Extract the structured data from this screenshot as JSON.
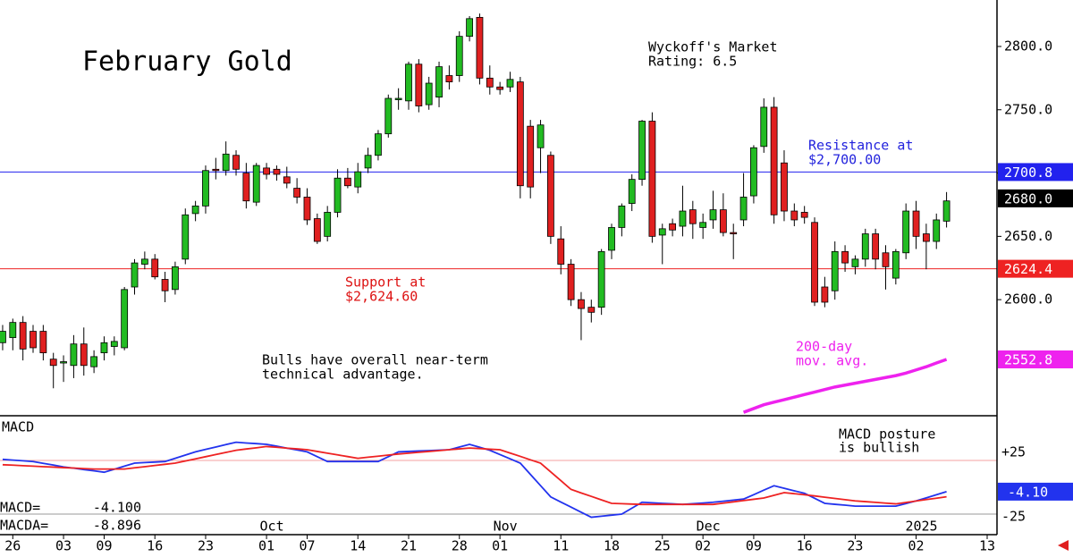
{
  "chart_data": [
    {
      "type": "candlestick",
      "title": "February Gold",
      "annotations": [
        {
          "lines": [
            "Wyckoff's Market",
            "Rating: 6.5"
          ],
          "color": "#000000"
        },
        {
          "lines": [
            "Resistance at",
            "$2,700.00"
          ],
          "color": "#2222dd"
        },
        {
          "lines": [
            "Support at",
            "$2,624.60"
          ],
          "color": "#dd1111"
        },
        {
          "lines": [
            "Bulls have overall near-term",
            "technical advantage."
          ],
          "color": "#000000"
        },
        {
          "lines": [
            "200-day",
            "mov. avg."
          ],
          "color": "#ee22ee"
        }
      ],
      "open": [
        2566,
        2570,
        2582,
        2575,
        2575,
        2553,
        2550,
        2548,
        2565,
        2547,
        2558,
        2563,
        2562,
        2610,
        2628,
        2632,
        2616,
        2608,
        2632,
        2668,
        2674,
        2703,
        2702,
        2714,
        2700,
        2677,
        2704,
        2703,
        2697,
        2688,
        2681,
        2664,
        2650,
        2669,
        2696,
        2689,
        2704,
        2714,
        2731,
        2758,
        2757,
        2786,
        2754,
        2760,
        2777,
        2777,
        2808,
        2823,
        2775,
        2768,
        2768,
        2772,
        2737,
        2720,
        2714,
        2648,
        2628,
        2600,
        2594,
        2594,
        2639,
        2657,
        2676,
        2695,
        2741,
        2651,
        2660,
        2658,
        2671,
        2657,
        2663,
        2671,
        2653,
        2663,
        2682,
        2721,
        2752,
        2708,
        2670,
        2669,
        2661,
        2610,
        2607,
        2638,
        2626,
        2632,
        2652,
        2637,
        2617,
        2637,
        2670,
        2652,
        2646,
        2662
      ],
      "high": [
        2580,
        2585,
        2587,
        2580,
        2580,
        2558,
        2556,
        2572,
        2578,
        2560,
        2571,
        2571,
        2610,
        2632,
        2638,
        2636,
        2622,
        2630,
        2672,
        2678,
        2706,
        2712,
        2725,
        2718,
        2708,
        2708,
        2708,
        2706,
        2705,
        2696,
        2688,
        2668,
        2674,
        2703,
        2704,
        2708,
        2720,
        2734,
        2762,
        2767,
        2788,
        2790,
        2776,
        2788,
        2785,
        2812,
        2824,
        2826,
        2785,
        2772,
        2780,
        2776,
        2742,
        2742,
        2717,
        2658,
        2632,
        2606,
        2600,
        2640,
        2660,
        2676,
        2699,
        2742,
        2748,
        2660,
        2664,
        2690,
        2678,
        2668,
        2686,
        2684,
        2660,
        2700,
        2722,
        2759,
        2760,
        2718,
        2676,
        2674,
        2665,
        2618,
        2646,
        2643,
        2635,
        2656,
        2656,
        2643,
        2640,
        2676,
        2678,
        2660,
        2668,
        2685
      ],
      "low": [
        2560,
        2560,
        2552,
        2558,
        2552,
        2530,
        2535,
        2538,
        2540,
        2542,
        2552,
        2556,
        2560,
        2604,
        2624,
        2616,
        2598,
        2604,
        2628,
        2662,
        2668,
        2695,
        2698,
        2698,
        2672,
        2674,
        2695,
        2694,
        2688,
        2676,
        2659,
        2644,
        2646,
        2665,
        2688,
        2684,
        2700,
        2710,
        2728,
        2750,
        2750,
        2748,
        2750,
        2752,
        2766,
        2772,
        2804,
        2770,
        2762,
        2762,
        2764,
        2680,
        2680,
        2700,
        2644,
        2620,
        2595,
        2568,
        2582,
        2588,
        2632,
        2650,
        2670,
        2690,
        2645,
        2628,
        2650,
        2650,
        2648,
        2648,
        2656,
        2650,
        2632,
        2658,
        2676,
        2716,
        2660,
        2662,
        2658,
        2660,
        2595,
        2594,
        2600,
        2622,
        2620,
        2626,
        2624,
        2608,
        2612,
        2632,
        2640,
        2624,
        2640,
        2657
      ],
      "close": [
        2575,
        2582,
        2561,
        2562,
        2558,
        2548,
        2551,
        2565,
        2548,
        2555,
        2566,
        2567,
        2608,
        2629,
        2632,
        2618,
        2607,
        2626,
        2667,
        2674,
        2702,
        2702,
        2715,
        2703,
        2678,
        2706,
        2699,
        2699,
        2692,
        2681,
        2663,
        2646,
        2669,
        2696,
        2690,
        2701,
        2714,
        2731,
        2759,
        2759,
        2786,
        2753,
        2771,
        2784,
        2772,
        2808,
        2822,
        2775,
        2768,
        2766,
        2774,
        2690,
        2689,
        2738,
        2650,
        2628,
        2600,
        2593,
        2590,
        2638,
        2657,
        2674,
        2695,
        2741,
        2650,
        2656,
        2655,
        2670,
        2660,
        2661,
        2671,
        2653,
        2652,
        2681,
        2720,
        2752,
        2667,
        2670,
        2663,
        2665,
        2598,
        2598,
        2638,
        2629,
        2632,
        2652,
        2632,
        2626,
        2638,
        2670,
        2650,
        2646,
        2663,
        2678
      ],
      "up_color": "#22bb22",
      "down_color": "#e02020",
      "ylim": [
        2508.3,
        2836.7
      ],
      "yticks": [
        {
          "value": 2800,
          "label": "2800.0"
        },
        {
          "value": 2750,
          "label": "2750.0"
        },
        {
          "value": 2700,
          "label": "2700.0"
        },
        {
          "value": 2650,
          "label": "2650.0"
        },
        {
          "value": 2600,
          "label": "2600.0"
        }
      ],
      "xlim": [
        -0.26,
        97.97
      ],
      "xticks": [
        {
          "value": 1,
          "label": "26"
        },
        {
          "value": 6,
          "label": "03"
        },
        {
          "value": 10,
          "label": "09"
        },
        {
          "value": 15,
          "label": "16"
        },
        {
          "value": 20,
          "label": "23"
        },
        {
          "value": 26,
          "label": "01"
        },
        {
          "value": 30,
          "label": "07"
        },
        {
          "value": 35,
          "label": "14"
        },
        {
          "value": 40,
          "label": "21"
        },
        {
          "value": 45,
          "label": "28"
        },
        {
          "value": 49,
          "label": "01"
        },
        {
          "value": 55,
          "label": "11"
        },
        {
          "value": 60,
          "label": "18"
        },
        {
          "value": 65,
          "label": "25"
        },
        {
          "value": 69,
          "label": "02"
        },
        {
          "value": 74,
          "label": "09"
        },
        {
          "value": 79,
          "label": "16"
        },
        {
          "value": 84,
          "label": "23"
        },
        {
          "value": 90,
          "label": "02"
        },
        {
          "value": 97,
          "label": "13"
        }
      ],
      "levels": [
        {
          "value": 2700.8,
          "label": "2700.8",
          "color": "#2222ee",
          "line": true
        },
        {
          "value": 2680,
          "label": "2680.0",
          "color": "#000000",
          "line": false
        },
        {
          "value": 2624.4,
          "label": "2624.4",
          "color": "#ee2222",
          "line": true
        },
        {
          "value": 2552.8,
          "label": "2552.8",
          "color": "#ee22ee",
          "line": false
        }
      ],
      "ma200": {
        "color": "#ee22ee",
        "values": [
          null,
          null,
          null,
          null,
          null,
          null,
          null,
          null,
          null,
          null,
          null,
          null,
          null,
          null,
          null,
          null,
          null,
          null,
          null,
          null,
          null,
          null,
          null,
          null,
          null,
          null,
          null,
          null,
          null,
          null,
          null,
          null,
          null,
          null,
          null,
          null,
          null,
          null,
          null,
          null,
          null,
          null,
          null,
          null,
          null,
          null,
          null,
          null,
          null,
          null,
          null,
          null,
          null,
          null,
          null,
          null,
          null,
          null,
          null,
          null,
          null,
          null,
          null,
          null,
          null,
          null,
          null,
          null,
          null,
          null,
          null,
          null,
          null,
          2511,
          2514,
          2517,
          2519,
          2521,
          2523,
          2525,
          2527,
          2529,
          2531,
          2532.5,
          2534,
          2535.5,
          2537,
          2538.5,
          2540,
          2542,
          2544.5,
          2547,
          2550,
          2552.8
        ]
      }
    },
    {
      "type": "line",
      "title": "MACD",
      "annotations": [
        {
          "lines": [
            "MACD posture",
            "is bullish"
          ],
          "color": "#000000"
        }
      ],
      "xlim": [
        -0.26,
        97.97
      ],
      "ylim": [
        -44.2,
        66.7
      ],
      "yticks": [
        {
          "value": 25,
          "label": "+25"
        },
        -25
      ],
      "month_labels": [
        {
          "value": 26,
          "label": "Oct"
        },
        {
          "value": 49,
          "label": "Nov"
        },
        {
          "value": 69,
          "label": "Dec"
        },
        {
          "value": 90,
          "label": "2025"
        }
      ],
      "series": [
        {
          "name": "MACD=",
          "readout": "-4.100",
          "last_label": "-4.10",
          "color": "#2233ee",
          "values": [
            26,
            25.3,
            24.7,
            24,
            22.3,
            20.7,
            19,
            17.8,
            16.5,
            15.3,
            14,
            16.8,
            19.7,
            22.5,
            23,
            23.5,
            24,
            27,
            30,
            33,
            35.3,
            37.5,
            39.8,
            42,
            41.3,
            40.7,
            40,
            38.3,
            36.5,
            34.8,
            33,
            28.5,
            24,
            24,
            24,
            24,
            24,
            24,
            28.5,
            33,
            33.4,
            33.8,
            34.2,
            34.6,
            35,
            37.5,
            40,
            37.3,
            34.5,
            30.5,
            26.5,
            22.5,
            12,
            1.5,
            -9,
            -13.8,
            -18.5,
            -23.3,
            -28,
            -27,
            -26,
            -25,
            -19.5,
            -14,
            -14.5,
            -15,
            -15.5,
            -16,
            -15.3,
            -14.7,
            -14,
            -13,
            -12,
            -11,
            -6.9,
            -2.7,
            1.4,
            -0.9,
            -3.3,
            -5.6,
            -10.3,
            -15,
            -15.9,
            -16.7,
            -17.6,
            -17.6,
            -17.6,
            -17.6,
            -17.6,
            -15.2,
            -12.7,
            -9.9,
            -7,
            -4.1
          ]
        },
        {
          "name": "MACDA=",
          "readout": "-8.896",
          "color": "#ee2222",
          "values": [
            21,
            20.6,
            20.1,
            19.7,
            19.2,
            18.8,
            18.3,
            17.9,
            17.4,
            17,
            17,
            17,
            17,
            18.1,
            19.2,
            20.3,
            21.4,
            22.5,
            24.5,
            26.5,
            28.5,
            30.5,
            32.5,
            34.5,
            35.7,
            36.8,
            38,
            37.3,
            36.5,
            35.8,
            35,
            33.4,
            31.8,
            30.2,
            28.6,
            27,
            28,
            29,
            30,
            31,
            31.8,
            32.6,
            33.4,
            34.2,
            35,
            35.8,
            36.6,
            36.1,
            35.5,
            35,
            31.9,
            28.8,
            25.6,
            22.5,
            14.3,
            6.2,
            -2,
            -5.3,
            -8.5,
            -11.8,
            -15,
            -15.3,
            -15.7,
            -16,
            -16,
            -16,
            -16,
            -16,
            -16,
            -16,
            -16,
            -14.8,
            -13.6,
            -12.4,
            -11.2,
            -10,
            -7.5,
            -5,
            -6,
            -7,
            -8.1,
            -9.3,
            -10.4,
            -11.6,
            -12.7,
            -13.4,
            -14.1,
            -14.8,
            -15.5,
            -14.2,
            -12.8,
            -11.5,
            -10.2,
            -8.896
          ]
        }
      ]
    }
  ]
}
